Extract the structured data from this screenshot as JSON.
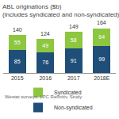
{
  "chart_data": {
    "type": "bar",
    "stacked": true,
    "title": "ABL originations ($b)",
    "subtitle": "(includes syndicated and non-syndicated)",
    "categories": [
      "2015",
      "2016",
      "2017",
      "2018E"
    ],
    "series": [
      {
        "name": "Non-syndicated",
        "color": "#1f4e79",
        "values": [
          85,
          76,
          91,
          99
        ]
      },
      {
        "name": "Syndicated",
        "color": "#8dc63f",
        "values": [
          55,
          49,
          58,
          64
        ]
      }
    ],
    "totals": [
      140,
      124,
      149,
      164
    ],
    "data_labels": true,
    "ylim": [
      0,
      185
    ],
    "tick_labels": "x",
    "grid": false,
    "legend": "bottom",
    "source": "Westat surveys, LPC Refinitiv, Study"
  }
}
